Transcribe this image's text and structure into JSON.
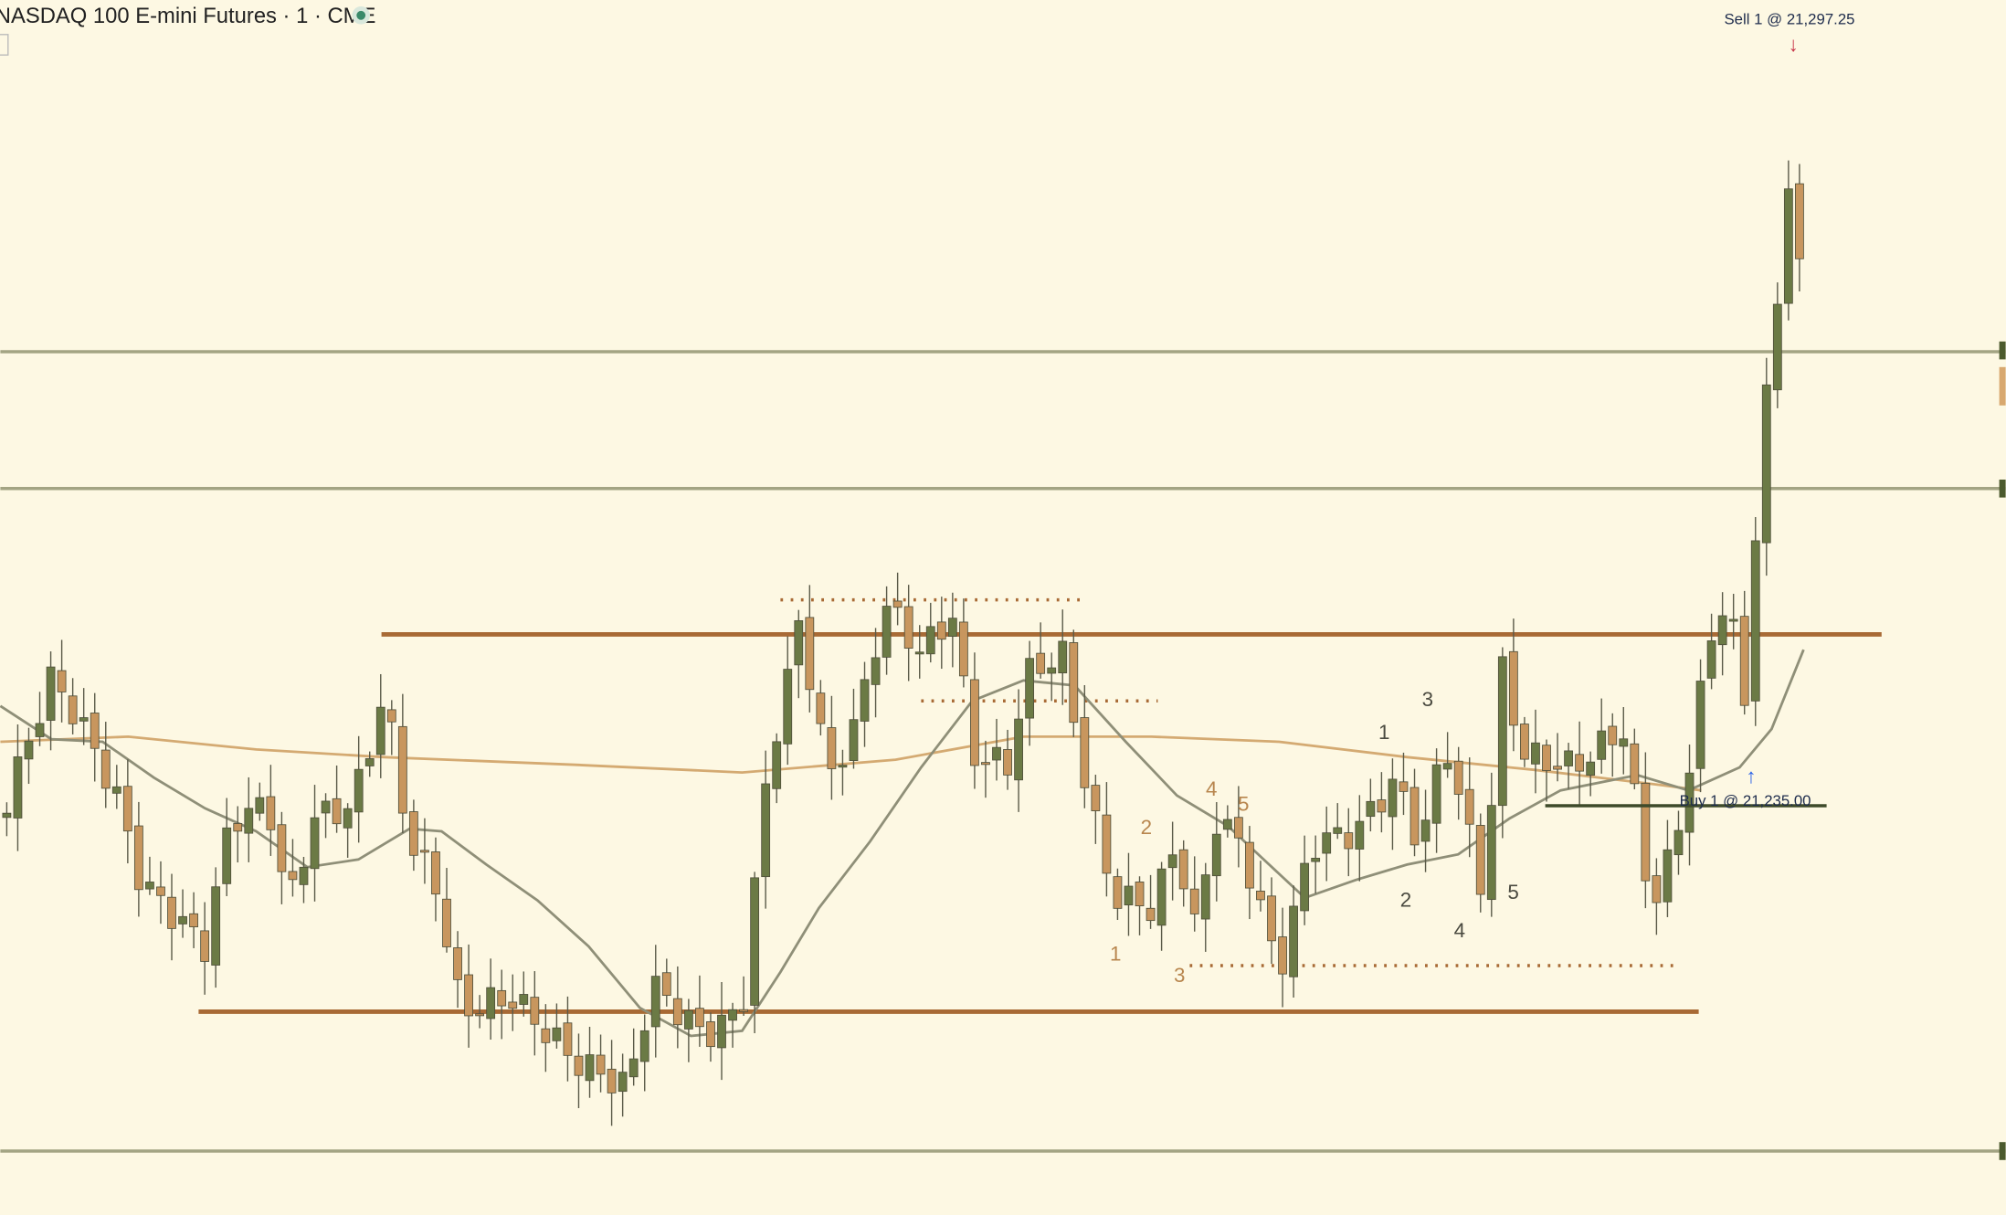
{
  "header": {
    "symbol": "NASDAQ 100 E-mini Futures · 1 · CME"
  },
  "orders": [
    {
      "label": "Sell 1 @ 21,297.25"
    },
    {
      "label": "Buy 1 @ 21,235.00"
    }
  ],
  "wave_labels": [
    "1",
    "2",
    "3",
    "4",
    "5",
    "1",
    "2",
    "3",
    "4",
    "5"
  ]
}
